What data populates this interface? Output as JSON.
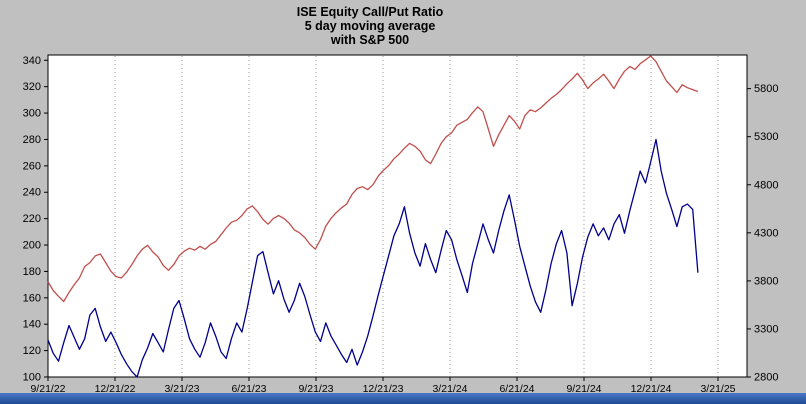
{
  "window": {
    "background_color": "#c0c0c0",
    "taskbar_color_top": "#4a79c8",
    "taskbar_color_bottom": "#1f4a94"
  },
  "chart_data": {
    "type": "line",
    "title_lines": [
      "ISE  Equity Call/Put Ratio",
      "5 day moving average",
      "with S&P 500"
    ],
    "plot_bg": "#ffffff",
    "grid": {
      "vertical_dotted": true,
      "color": "#999999",
      "horizontal": false
    },
    "x_tick_labels": [
      "9/21/22",
      "12/21/22",
      "3/21/23",
      "6/21/23",
      "9/21/23",
      "12/21/23",
      "3/21/24",
      "6/21/24",
      "9/21/24",
      "12/21/24",
      "3/21/25"
    ],
    "left_axis": {
      "min": 100,
      "max": 344,
      "ticks": [
        340,
        320,
        300,
        280,
        260,
        240,
        220,
        200,
        180,
        160,
        140,
        120,
        100
      ]
    },
    "right_axis": {
      "min": 2800,
      "max": 6150,
      "ticks": [
        5800,
        5300,
        4800,
        4300,
        3800,
        3300,
        2800
      ]
    },
    "series": [
      {
        "name": "ISE Equity Call/Put Ratio 5-day moving average",
        "axis": "left",
        "color": "#00008b",
        "t_end": 0.97,
        "values": [
          128,
          118,
          112,
          126,
          139,
          130,
          121,
          129,
          147,
          152,
          138,
          127,
          134,
          126,
          117,
          110,
          104,
          100,
          113,
          122,
          133,
          126,
          119,
          136,
          152,
          158,
          144,
          129,
          121,
          115,
          126,
          141,
          131,
          119,
          114,
          129,
          141,
          134,
          152,
          172,
          192,
          195,
          179,
          163,
          173,
          159,
          149,
          158,
          171,
          161,
          147,
          134,
          127,
          141,
          131,
          124,
          117,
          111,
          121,
          109,
          119,
          131,
          146,
          162,
          177,
          192,
          207,
          216,
          229,
          209,
          194,
          184,
          201,
          189,
          179,
          196,
          211,
          204,
          189,
          177,
          164,
          186,
          201,
          216,
          204,
          194,
          211,
          226,
          238,
          219,
          199,
          184,
          169,
          157,
          149,
          166,
          186,
          201,
          211,
          194,
          154,
          171,
          191,
          206,
          216,
          207,
          213,
          204,
          216,
          223,
          209,
          226,
          241,
          256,
          247,
          263,
          280,
          256,
          239,
          227,
          214,
          229,
          231,
          227,
          179
        ]
      },
      {
        "name": "S&P 500",
        "axis": "right",
        "color": "#c0504d",
        "t_end": 0.97,
        "values": [
          3790,
          3700,
          3640,
          3585,
          3680,
          3760,
          3830,
          3950,
          3990,
          4060,
          4080,
          3990,
          3900,
          3845,
          3830,
          3890,
          3970,
          4060,
          4130,
          4170,
          4100,
          4050,
          3960,
          3910,
          3970,
          4060,
          4110,
          4140,
          4120,
          4160,
          4130,
          4180,
          4210,
          4280,
          4350,
          4410,
          4430,
          4480,
          4550,
          4580,
          4520,
          4440,
          4390,
          4450,
          4480,
          4450,
          4400,
          4330,
          4300,
          4250,
          4180,
          4130,
          4230,
          4370,
          4450,
          4510,
          4560,
          4600,
          4700,
          4760,
          4780,
          4750,
          4800,
          4890,
          4950,
          5000,
          5070,
          5120,
          5180,
          5230,
          5200,
          5150,
          5060,
          5020,
          5120,
          5230,
          5300,
          5340,
          5420,
          5450,
          5480,
          5550,
          5610,
          5560,
          5380,
          5200,
          5320,
          5420,
          5520,
          5460,
          5380,
          5520,
          5580,
          5560,
          5600,
          5650,
          5700,
          5740,
          5790,
          5850,
          5900,
          5960,
          5890,
          5800,
          5860,
          5900,
          5950,
          5880,
          5800,
          5900,
          5980,
          6030,
          6000,
          6060,
          6100,
          6140,
          6080,
          5980,
          5880,
          5820,
          5760,
          5840,
          5810,
          5790,
          5770
        ]
      }
    ]
  }
}
